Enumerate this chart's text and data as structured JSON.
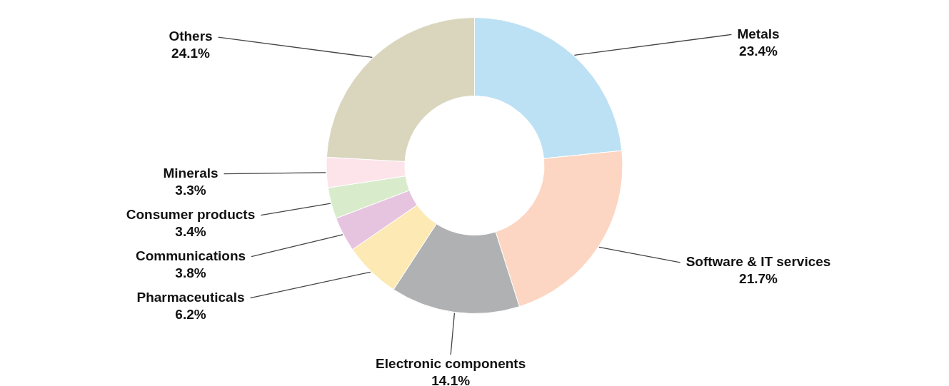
{
  "chart_data": {
    "type": "donut",
    "categories": [
      "Metals",
      "Software & IT services",
      "Electronic components",
      "Pharmaceuticals",
      "Communications",
      "Consumer products",
      "Minerals",
      "Others"
    ],
    "values": [
      23.4,
      21.7,
      14.1,
      6.2,
      3.8,
      3.4,
      3.3,
      24.1
    ],
    "value_labels": [
      "23.4%",
      "21.7%",
      "14.1%",
      "6.2%",
      "3.8%",
      "3.4%",
      "3.3%",
      "24.1%"
    ],
    "colors": [
      "#bde1f4",
      "#fcd6c2",
      "#b0b1b3",
      "#fde9b3",
      "#e6c4e0",
      "#d8eccc",
      "#fce4ea",
      "#d9d6bd"
    ],
    "legend": false
  }
}
